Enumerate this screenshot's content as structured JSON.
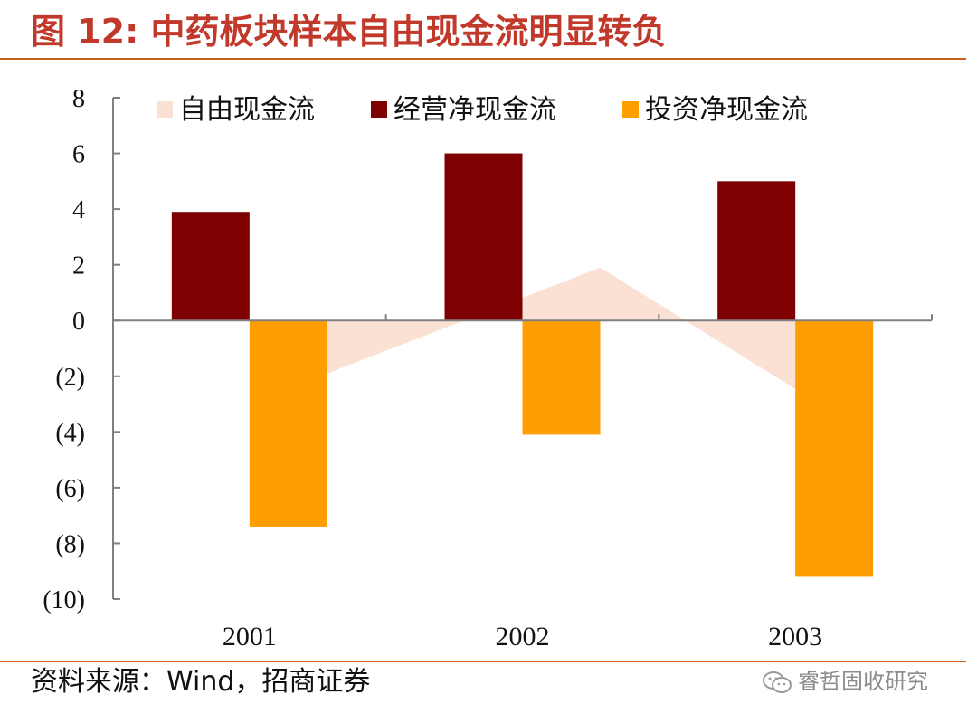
{
  "figure": {
    "title": "图 12:  中药板块样本自由现金流明显转负",
    "source": "资料来源：Wind，招商证券",
    "watermark": "睿哲固收研究"
  },
  "colors": {
    "title": "#c0392b",
    "rule": "#c9611d",
    "free_cash_flow": "#fbe0d4",
    "operating_cash_flow": "#7f0000",
    "investing_cash_flow": "#ff9e00",
    "axis": "#808080"
  },
  "chart_data": {
    "type": "bar",
    "title": "中药板块样本自由现金流明显转负",
    "categories": [
      "2001",
      "2002",
      "2003"
    ],
    "y_tick_labels": [
      "8",
      "6",
      "4",
      "2",
      "0",
      "(2)",
      "(4)",
      "(6)",
      "(8)",
      "(10)"
    ],
    "y_ticks": [
      8,
      6,
      4,
      2,
      0,
      -2,
      -4,
      -6,
      -8,
      -10
    ],
    "ylim": [
      -10,
      8
    ],
    "legend_position": "top",
    "series": [
      {
        "name": "自由现金流",
        "kind": "area",
        "color": "#fbe0d4",
        "values": [
          -1.9,
          1.9,
          -4.2
        ]
      },
      {
        "name": "经营净现金流",
        "kind": "bar",
        "color": "#7f0000",
        "values": [
          3.9,
          6.0,
          5.0
        ]
      },
      {
        "name": "投资净现金流",
        "kind": "bar",
        "color": "#ff9e00",
        "values": [
          -7.4,
          -4.1,
          -9.2
        ]
      }
    ]
  }
}
